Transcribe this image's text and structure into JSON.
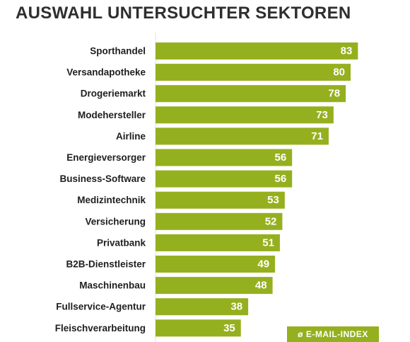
{
  "title": "AUSWAHL UNTERSUCHTER SEKTOREN",
  "legend_label": "ø E-MAIL-INDEX",
  "colors": {
    "bar": "#95b01f",
    "axis_line": "#e2e2e2",
    "title": "#2e2e2e",
    "label": "#1f1f1f",
    "value_text": "#ffffff"
  },
  "chart_data": {
    "type": "bar",
    "orientation": "horizontal",
    "title": "AUSWAHL UNTERSUCHTER SEKTOREN",
    "categories": [
      "Sporthandel",
      "Versandapotheke",
      "Drogeriemarkt",
      "Modehersteller",
      "Airline",
      "Energieversorger",
      "Business-Software",
      "Medizintechnik",
      "Versicherung",
      "Privatbank",
      "B2B-Dienstleister",
      "Maschinenbau",
      "Fullservice-Agentur",
      "Fleischverarbeitung"
    ],
    "series": [
      {
        "name": "ø E-MAIL-INDEX",
        "values": [
          83,
          80,
          78,
          73,
          71,
          56,
          56,
          53,
          52,
          51,
          49,
          48,
          38,
          35
        ]
      }
    ],
    "xlim": [
      0,
      100
    ],
    "grid": false,
    "legend_position": "bottom-right",
    "value_labels": true
  }
}
